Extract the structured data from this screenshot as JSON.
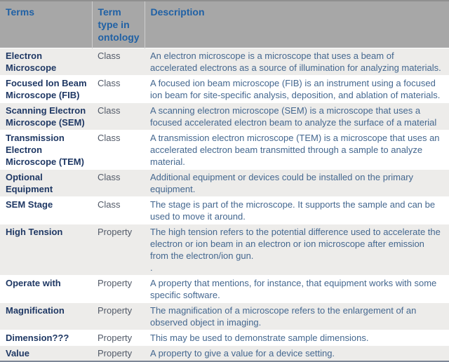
{
  "colors": {
    "header-bg": "#a7a7a7",
    "header-text": "#2061a5",
    "row-shaded": "#edecea",
    "row-plain": "#ffffff",
    "term-text": "#1f3864",
    "type-text": "#525a68",
    "desc-text": "#44678f"
  },
  "table": {
    "columns": [
      {
        "label": "Terms"
      },
      {
        "label": "Term type in ontology"
      },
      {
        "label": "Description"
      }
    ],
    "rows": [
      {
        "term": "Electron Microscope",
        "type": "Class",
        "description": "An electron microscope is a microscope that uses a beam of accelerated electrons as a source of illumination for analyzing materials."
      },
      {
        "term": "Focused Ion Beam Microscope (FIB)",
        "type": "Class",
        "description": "A focused ion beam microscope (FIB) is an instrument using a focused ion beam for site-specific analysis, deposition, and ablation of materials."
      },
      {
        "term": "Scanning Electron Microscope (SEM)",
        "type": "Class",
        "description": "A scanning electron microscope (SEM) is a microscope that uses a focused accelerated electron beam to analyze the surface of a material"
      },
      {
        "term": "Transmission Electron Microscope (TEM)",
        "type": "Class",
        "description": "A transmission electron microscope (TEM) is a microscope that uses an accelerated electron beam transmitted through a sample to analyze material."
      },
      {
        "term": "Optional Equipment",
        "type": "Class",
        "description": "Additional equipment or devices could be installed on the primary equipment."
      },
      {
        "term": "SEM Stage",
        "type": "Class",
        "description": "The stage is part of the microscope. It supports the sample and can be used to move it around."
      },
      {
        "term": "High Tension",
        "type": "Property",
        "description": "The high tension refers to the potential difference used to accelerate the electron or ion beam in an electron or ion microscope after emission from the electron/ion gun.\n."
      },
      {
        "term": "Operate with",
        "type": "Property",
        "description": "A property that mentions, for instance, that equipment works with some specific software."
      },
      {
        "term": "Magnification",
        "type": "Property",
        "description": "The magnification of a microscope refers to the enlargement of an observed object in imaging."
      },
      {
        "term": "Dimension???",
        "type": "Property",
        "description": "This may be used to demonstrate sample dimensions."
      },
      {
        "term": "Value",
        "type": "Property",
        "description": "A property to give a value for a device setting."
      }
    ]
  }
}
